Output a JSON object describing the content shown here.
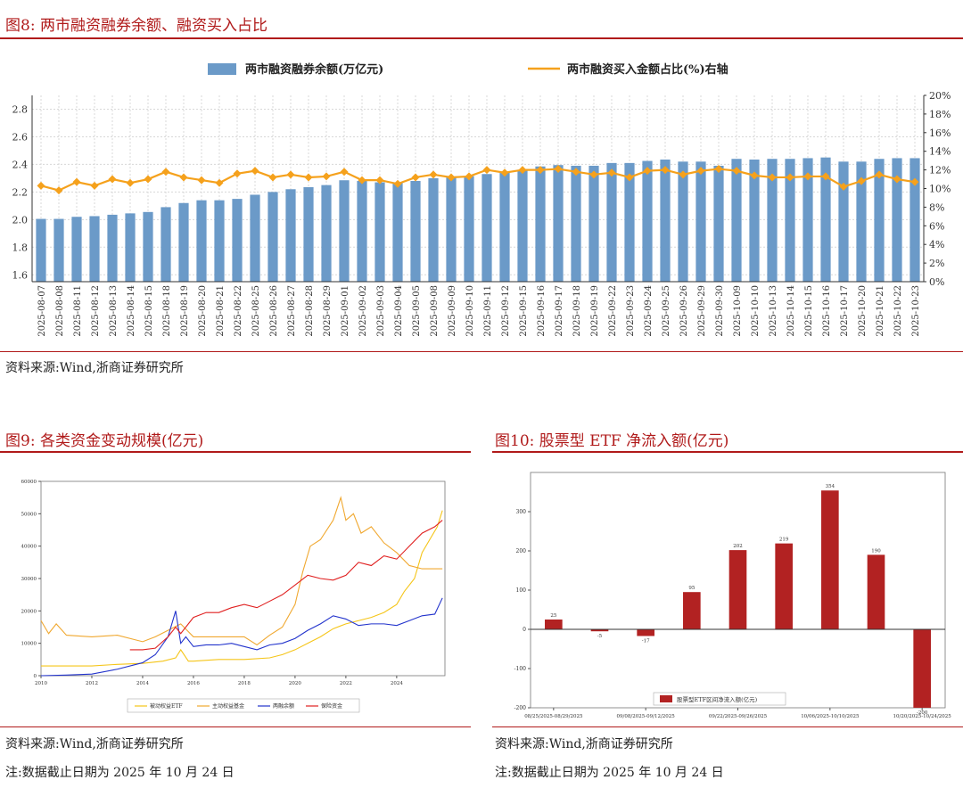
{
  "colors": {
    "accent": "#b01a1a",
    "bar_blue": "#6b9ac8",
    "line_orange": "#f5a11c",
    "bar_red": "#b22222"
  },
  "fig8": {
    "title": "图8:  两市融资融券余额、融资买入占比",
    "source": "资料来源:Wind,浙商证券研究所"
  },
  "fig9": {
    "title": "图9:  各类资金变动规模(亿元)",
    "source": "资料来源:Wind,浙商证券研究所",
    "note": "注:数据截止日期为 2025 年 10 月 24 日"
  },
  "fig10": {
    "title": "图10:  股票型 ETF 净流入额(亿元)",
    "source": "资料来源:Wind,浙商证券研究所",
    "note": "注:数据截止日期为 2025 年 10 月 24 日"
  },
  "chart_data": [
    {
      "type": "bar",
      "id": "fig8",
      "legend": [
        "两市融资融券余额(万亿元)",
        "两市融资买入金额占比(%)右轴"
      ],
      "left_ylim": [
        1.55,
        2.9
      ],
      "left_ticks": [
        "1.6",
        "1.8",
        "2.0",
        "2.2",
        "2.4",
        "2.6",
        "2.8"
      ],
      "right_ylim": [
        0,
        20
      ],
      "right_ticks": [
        "0%",
        "2%",
        "4%",
        "6%",
        "8%",
        "10%",
        "12%",
        "14%",
        "16%",
        "18%",
        "20%"
      ],
      "categories": [
        "2025-08-07",
        "2025-08-08",
        "2025-08-11",
        "2025-08-12",
        "2025-08-13",
        "2025-08-14",
        "2025-08-15",
        "2025-08-18",
        "2025-08-19",
        "2025-08-20",
        "2025-08-21",
        "2025-08-22",
        "2025-08-25",
        "2025-08-26",
        "2025-08-27",
        "2025-08-28",
        "2025-08-29",
        "2025-09-01",
        "2025-09-02",
        "2025-09-03",
        "2025-09-04",
        "2025-09-05",
        "2025-09-08",
        "2025-09-09",
        "2025-09-10",
        "2025-09-11",
        "2025-09-12",
        "2025-09-15",
        "2025-09-16",
        "2025-09-17",
        "2025-09-18",
        "2025-09-19",
        "2025-09-22",
        "2025-09-23",
        "2025-09-24",
        "2025-09-25",
        "2025-09-26",
        "2025-09-29",
        "2025-09-30",
        "2025-10-09",
        "2025-10-10",
        "2025-10-13",
        "2025-10-14",
        "2025-10-15",
        "2025-10-16",
        "2025-10-17",
        "2025-10-20",
        "2025-10-21",
        "2025-10-22",
        "2025-10-23"
      ],
      "series": [
        {
          "name": "两市融资融券余额(万亿元)",
          "axis": "left",
          "values": [
            2.005,
            2.005,
            2.02,
            2.025,
            2.035,
            2.045,
            2.055,
            2.09,
            2.12,
            2.14,
            2.14,
            2.15,
            2.18,
            2.2,
            2.22,
            2.235,
            2.25,
            2.285,
            2.28,
            2.27,
            2.27,
            2.28,
            2.3,
            2.31,
            2.315,
            2.33,
            2.34,
            2.36,
            2.385,
            2.395,
            2.39,
            2.39,
            2.41,
            2.41,
            2.425,
            2.435,
            2.42,
            2.42,
            2.39,
            2.44,
            2.435,
            2.44,
            2.44,
            2.445,
            2.45,
            2.42,
            2.42,
            2.44,
            2.445,
            2.445
          ]
        },
        {
          "name": "两市融资买入金额占比(%)右轴",
          "axis": "right",
          "values": [
            10.3,
            9.8,
            10.7,
            10.3,
            11.0,
            10.6,
            11.0,
            11.8,
            11.2,
            10.9,
            10.6,
            11.6,
            11.9,
            11.2,
            11.5,
            11.2,
            11.3,
            11.8,
            10.9,
            10.9,
            10.5,
            11.2,
            11.5,
            11.2,
            11.3,
            12.0,
            11.7,
            12.0,
            12.0,
            12.1,
            11.8,
            11.5,
            11.7,
            11.2,
            11.9,
            12.0,
            11.5,
            11.9,
            12.1,
            11.9,
            11.4,
            11.2,
            11.2,
            11.3,
            11.3,
            10.2,
            10.8,
            11.5,
            11.0,
            10.7
          ]
        }
      ]
    },
    {
      "type": "line",
      "id": "fig9",
      "ylim": [
        0,
        60000
      ],
      "y_ticks": [
        "0",
        "10000",
        "20000",
        "30000",
        "40000",
        "50000",
        "60000"
      ],
      "x_ticks": [
        "2010",
        "2012",
        "2014",
        "2016",
        "2018",
        "2020",
        "2022",
        "2024"
      ],
      "xlim": [
        2010,
        2025.9
      ],
      "series": [
        {
          "name": "被动权益ETF",
          "color": "#f5c518",
          "x": [
            2010,
            2011,
            2012,
            2013,
            2014,
            2014.8,
            2015.3,
            2015.5,
            2015.8,
            2016,
            2017,
            2018,
            2019,
            2019.5,
            2020,
            2020.5,
            2021,
            2021.5,
            2022,
            2022.5,
            2023,
            2023.5,
            2024,
            2024.3,
            2024.7,
            2025,
            2025.3,
            2025.6,
            2025.8
          ],
          "values": [
            3000,
            3000,
            3000,
            3500,
            3800,
            4500,
            5500,
            8000,
            4500,
            4500,
            5000,
            5000,
            5500,
            6500,
            8000,
            10000,
            12000,
            14500,
            16000,
            17000,
            18000,
            19500,
            22000,
            26000,
            30000,
            38000,
            42000,
            46000,
            51000
          ]
        },
        {
          "name": "主动权益基金",
          "color": "#f0a830",
          "x": [
            2010,
            2010.3,
            2010.6,
            2011,
            2012,
            2013,
            2014,
            2014.5,
            2015,
            2015.5,
            2016,
            2017,
            2018,
            2018.5,
            2019,
            2019.5,
            2020,
            2020.3,
            2020.6,
            2021,
            2021.5,
            2021.8,
            2022,
            2022.3,
            2022.6,
            2023,
            2023.5,
            2024,
            2024.5,
            2025,
            2025.5,
            2025.8
          ],
          "values": [
            17000,
            13000,
            16000,
            12500,
            12000,
            12500,
            10500,
            12000,
            14000,
            16000,
            12000,
            12000,
            12000,
            9500,
            12500,
            15000,
            22000,
            32000,
            40000,
            42000,
            48000,
            55000,
            48000,
            50000,
            44000,
            46000,
            41000,
            38000,
            34000,
            33000,
            33000,
            33000
          ]
        },
        {
          "name": "两融余额",
          "color": "#2233cc",
          "x": [
            2010,
            2011,
            2012,
            2013,
            2014,
            2014.5,
            2015,
            2015.3,
            2015.5,
            2015.7,
            2016,
            2016.5,
            2017,
            2017.5,
            2018,
            2018.5,
            2019,
            2019.5,
            2020,
            2020.5,
            2021,
            2021.5,
            2022,
            2022.5,
            2023,
            2023.5,
            2024,
            2024.5,
            2025,
            2025.5,
            2025.8
          ],
          "values": [
            0,
            200,
            500,
            2000,
            4000,
            6500,
            12000,
            20000,
            10000,
            12000,
            9000,
            9500,
            9500,
            10000,
            9000,
            8000,
            9500,
            10000,
            11500,
            14000,
            16000,
            18500,
            17500,
            15500,
            16000,
            16000,
            15500,
            17000,
            18500,
            19000,
            24000
          ]
        },
        {
          "name": "保险资金",
          "color": "#e02020",
          "x": [
            2013.5,
            2014,
            2014.5,
            2015,
            2015.3,
            2015.5,
            2016,
            2016.5,
            2017,
            2017.5,
            2018,
            2018.5,
            2019,
            2019.5,
            2020,
            2020.5,
            2021,
            2021.5,
            2022,
            2022.5,
            2023,
            2023.5,
            2024,
            2024.5,
            2025,
            2025.5,
            2025.8
          ],
          "values": [
            8000,
            8000,
            8500,
            12000,
            15000,
            13000,
            18000,
            19500,
            19500,
            21000,
            22000,
            21000,
            23000,
            25000,
            28000,
            31000,
            30000,
            29500,
            31000,
            35000,
            34000,
            37000,
            36000,
            40000,
            44000,
            46000,
            48000
          ]
        }
      ]
    },
    {
      "type": "bar",
      "id": "fig10",
      "legend": "股票型ETF区间净流入额(亿元)",
      "ylim": [
        -200,
        400
      ],
      "y_ticks": [
        "-200",
        "-100",
        "0",
        "100",
        "200",
        "300"
      ],
      "x_tick_labels": [
        "08/25/2025-08/29/2025",
        "09/08/2025-09/12/2025",
        "09/22/2025-09/26/2025",
        "10/06/2025-10/10/2025",
        "10/20/2025-10/24/2025"
      ],
      "values": [
        25,
        -5,
        -17,
        95,
        202,
        219,
        354,
        190,
        -200
      ],
      "labels": [
        "25",
        "-5",
        "-17",
        "95",
        "202",
        "219",
        "354",
        "190",
        "-200"
      ]
    }
  ]
}
